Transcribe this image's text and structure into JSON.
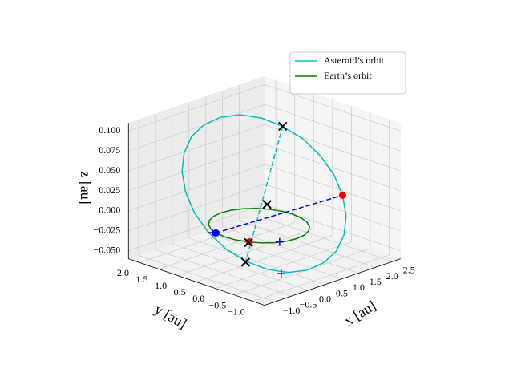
{
  "chart_data": {
    "type": "line3d",
    "xlabel": "x [au]",
    "ylabel": "y [au]",
    "zlabel": "z [au]",
    "xlim": [
      -1.3,
      2.75
    ],
    "ylim": [
      -1.3,
      2.3
    ],
    "zlim": [
      -0.06,
      0.11
    ],
    "xticks": [
      {
        "value": -1,
        "label": "−1.0"
      },
      {
        "value": -0.5,
        "label": "−0.5"
      },
      {
        "value": 0,
        "label": "0.0"
      },
      0.5,
      {
        "value": 1,
        "label": "1.0"
      },
      1.5,
      {
        "value": 2,
        "label": "2.0"
      },
      2.5
    ],
    "yticks": [
      {
        "value": -1,
        "label": "−1.0"
      },
      {
        "value": -0.5,
        "label": "−0.5"
      },
      {
        "value": 0,
        "label": "0.0"
      },
      0.5,
      {
        "value": 1,
        "label": "1.0"
      },
      1.5,
      {
        "value": 2,
        "label": "2.0"
      }
    ],
    "zticks": [
      {
        "value": -0.05,
        "label": "−0.050"
      },
      {
        "value": -0.025,
        "label": "−0.025"
      },
      {
        "value": 0,
        "label": "0.000"
      },
      0.025,
      {
        "value": 0.05,
        "label": "0.050"
      },
      0.075,
      {
        "value": 0.1,
        "label": "0.100"
      }
    ],
    "grid": true,
    "legend": "upper right",
    "series": [
      {
        "name": "Asteroid’s orbit",
        "color": "#00bfbf",
        "x": [
          1.7,
          1.741,
          1.703,
          1.59,
          1.41,
          1.175,
          0.9,
          0.605,
          0.31,
          0.034,
          -0.203,
          -0.385,
          -0.5,
          -0.541,
          -0.503,
          -0.39,
          -0.21,
          0.025,
          0.3,
          0.595,
          0.89,
          1.166,
          1.403,
          1.585,
          1.7
        ],
        "y": [
          -0.7,
          -0.43,
          -0.103,
          0.258,
          0.629,
          0.984,
          1.3,
          1.554,
          1.729,
          1.814,
          1.803,
          1.696,
          1.5,
          1.23,
          0.903,
          0.542,
          0.171,
          -0.184,
          -0.5,
          -0.754,
          -0.929,
          -1.014,
          -1.003,
          -0.896,
          -0.7
        ],
        "z": [
          0.025,
          0.046,
          0.065,
          0.082,
          0.094,
          0.102,
          0.105,
          0.102,
          0.094,
          0.082,
          0.065,
          0.046,
          0.025,
          0.004,
          -0.015,
          -0.032,
          -0.044,
          -0.052,
          -0.055,
          -0.052,
          -0.044,
          -0.032,
          -0.015,
          0.004,
          0.025
        ]
      },
      {
        "name": "Earth’s orbit",
        "color": "#008000",
        "x": [
          1,
          0.966,
          0.866,
          0.707,
          0.5,
          0.259,
          0,
          -0.259,
          -0.5,
          -0.707,
          -0.866,
          -0.966,
          -1,
          -0.966,
          -0.866,
          -0.707,
          -0.5,
          -0.259,
          0,
          0.259,
          0.5,
          0.707,
          0.866,
          0.966,
          1
        ],
        "y": [
          0,
          0.259,
          0.5,
          0.707,
          0.866,
          0.966,
          1,
          0.966,
          0.866,
          0.707,
          0.5,
          0.259,
          0,
          -0.259,
          -0.5,
          -0.707,
          -0.866,
          -0.966,
          -1,
          -0.966,
          -0.866,
          -0.707,
          -0.5,
          -0.259,
          0
        ],
        "z": [
          0,
          0,
          0,
          0,
          0,
          0,
          0,
          0,
          0,
          0,
          0,
          0,
          0,
          0,
          0,
          0,
          0,
          0,
          0,
          0,
          0,
          0,
          0,
          0,
          0
        ]
      }
    ],
    "lines": [
      {
        "color": "#00bfbf",
        "linestyle": "dashed",
        "x": [
          1.41,
          -0.4
        ],
        "y": [
          0.629,
          0
        ],
        "z": [
          0.094,
          -0.04
        ]
      },
      {
        "color": "#0000ff",
        "linestyle": "dashed",
        "x": [
          -0.96,
          1.7
        ],
        "y": [
          0.29,
          -0.7
        ],
        "z": [
          0,
          0.025
        ]
      }
    ],
    "points": [
      {
        "marker": "o",
        "color": "#ff0000",
        "x": 1.7,
        "y": -0.7,
        "z": 0.025
      },
      {
        "marker": "o",
        "color": "#ff0000",
        "x": -0.15,
        "y": 0.12,
        "z": -0.02
      },
      {
        "marker": "o",
        "color": "#0000ff",
        "x": -0.96,
        "y": 0.29,
        "z": 0
      },
      {
        "marker": "+",
        "color": "#0000ff",
        "x": -1,
        "y": 0.35,
        "z": 0
      },
      {
        "marker": "+",
        "color": "#0000ff",
        "x": -0.4,
        "y": -0.9,
        "z": 0
      },
      {
        "marker": "+",
        "color": "#0000ff",
        "x": 0.15,
        "y": -0.45,
        "z": -0.055
      },
      {
        "marker": "x",
        "color": "#000000",
        "x": 1.41,
        "y": 0.629,
        "z": 0.094
      },
      {
        "marker": "x",
        "color": "#000000",
        "x": 0.35,
        "y": 0.1,
        "z": 0.02
      },
      {
        "marker": "x",
        "color": "#000000",
        "x": -0.2,
        "y": 0.1,
        "z": -0.02
      },
      {
        "marker": "x",
        "color": "#000000",
        "x": -0.4,
        "y": 0,
        "z": -0.04
      }
    ]
  }
}
